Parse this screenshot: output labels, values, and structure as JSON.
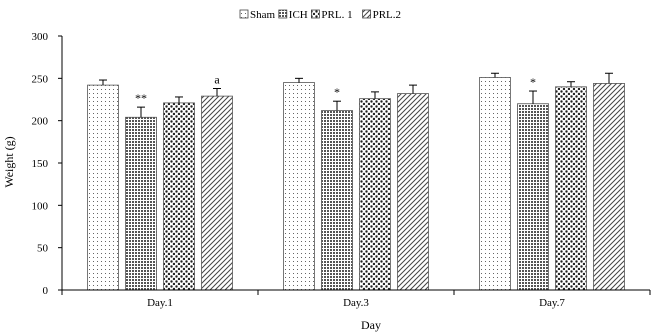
{
  "chart_data": {
    "type": "bar",
    "title": "",
    "xlabel": "Day",
    "ylabel": "Weight (g)",
    "ylim": [
      0,
      300
    ],
    "yticks": [
      0,
      50,
      100,
      150,
      200,
      250,
      300
    ],
    "grid": false,
    "legend_position": "top-center",
    "categories": [
      "Day.1",
      "Day.3",
      "Day.7"
    ],
    "series": [
      {
        "name": "Sham",
        "pattern": "light-dots",
        "values": [
          242,
          245,
          251
        ],
        "errors": [
          6,
          5,
          5
        ]
      },
      {
        "name": "ICH",
        "pattern": "dense-grid",
        "values": [
          204,
          212,
          220
        ],
        "errors": [
          12,
          11,
          15
        ]
      },
      {
        "name": "PRL. 1",
        "pattern": "bold-dots",
        "values": [
          221,
          226,
          240
        ],
        "errors": [
          7,
          8,
          6
        ]
      },
      {
        "name": "PRL.2",
        "pattern": "diagonal",
        "values": [
          229,
          232,
          244
        ],
        "errors": [
          9,
          10,
          12
        ]
      }
    ],
    "annotations": [
      {
        "category": "Day.1",
        "series": "ICH",
        "text": "**"
      },
      {
        "category": "Day.1",
        "series": "PRL.2",
        "text": "a"
      },
      {
        "category": "Day.3",
        "series": "ICH",
        "text": "*"
      },
      {
        "category": "Day.7",
        "series": "ICH",
        "text": "*"
      }
    ]
  }
}
